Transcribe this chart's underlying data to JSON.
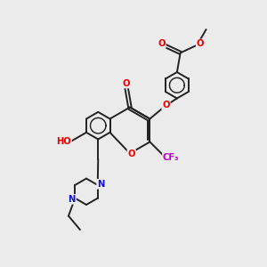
{
  "bg_color": "#ebebeb",
  "bond_color": "#222222",
  "bond_width": 1.4,
  "atom_colors": {
    "O": "#ee0000",
    "N": "#1111cc",
    "F": "#bb00bb",
    "C": "#222222"
  },
  "figsize": [
    3.0,
    3.0
  ],
  "dpi": 100
}
